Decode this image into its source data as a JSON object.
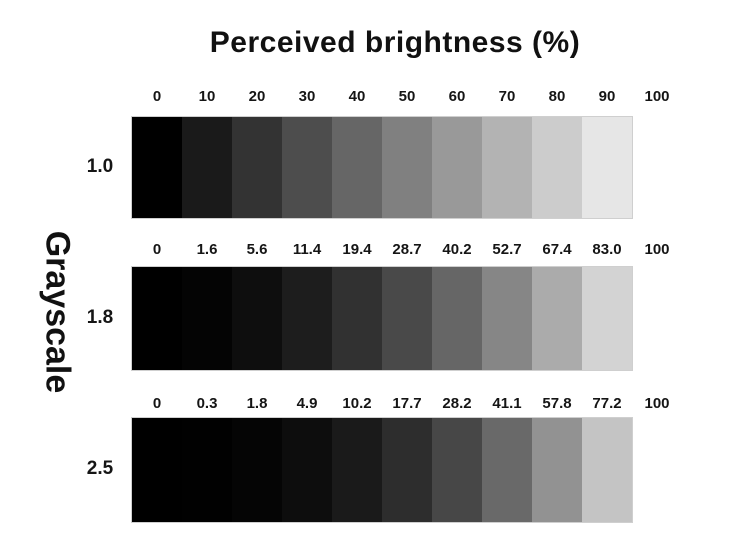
{
  "title": "Perceived brightness (%)",
  "ylabel": "Grayscale",
  "colors": {
    "background": "#ffffff",
    "text": "#111111",
    "strip_border": "#cfcfcf"
  },
  "chart_data": {
    "type": "heatmap",
    "title": "Perceived brightness (%)",
    "ylabel": "Grayscale",
    "legend": "none",
    "rows": [
      {
        "gamma": "1.0",
        "tick_labels": [
          "0",
          "10",
          "20",
          "30",
          "40",
          "50",
          "60",
          "70",
          "80",
          "90",
          "100"
        ],
        "perceived_brightness_percent": [
          0,
          10,
          20,
          30,
          40,
          50,
          60,
          70,
          80,
          90,
          100
        ],
        "swatch_grays": [
          0,
          26,
          51,
          77,
          102,
          128,
          153,
          179,
          204,
          230,
          255
        ]
      },
      {
        "gamma": "1.8",
        "tick_labels": [
          "0",
          "1.6",
          "5.6",
          "11.4",
          "19.4",
          "28.7",
          "40.2",
          "52.7",
          "67.4",
          "83.0",
          "100"
        ],
        "perceived_brightness_percent": [
          0,
          1.6,
          5.6,
          11.4,
          19.4,
          28.7,
          40.2,
          52.7,
          67.4,
          83.0,
          100
        ],
        "swatch_grays": [
          0,
          4,
          14,
          29,
          49,
          73,
          102,
          134,
          171,
          211,
          255
        ]
      },
      {
        "gamma": "2.5",
        "tick_labels": [
          "0",
          "0.3",
          "1.8",
          "4.9",
          "10.2",
          "17.7",
          "28.2",
          "41.1",
          "57.8",
          "77.2",
          "100"
        ],
        "perceived_brightness_percent": [
          0,
          0.3,
          1.8,
          4.9,
          10.2,
          17.7,
          28.2,
          41.1,
          57.8,
          77.2,
          100
        ],
        "swatch_grays": [
          0,
          1,
          5,
          13,
          26,
          45,
          71,
          105,
          146,
          196,
          255
        ]
      }
    ]
  }
}
